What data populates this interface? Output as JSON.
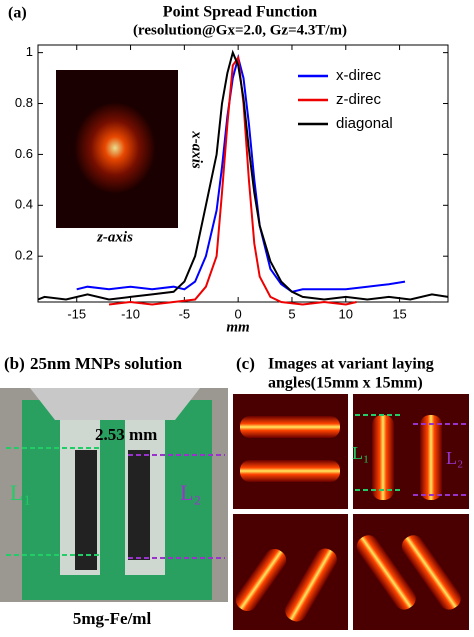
{
  "chart_data": {
    "type": "line",
    "panel_label": "(a)",
    "title": "Point Spread Function",
    "subtitle": "(resolution@Gx=2.0, Gz=4.3T/m)",
    "x_label": "mm",
    "inset_labels": [
      "x-axis",
      "z-axis"
    ],
    "xlim": [
      -18.6,
      19.5
    ],
    "xticks": [
      -15,
      -10,
      -5,
      0,
      5,
      10,
      15
    ],
    "ylim": [
      0.02,
      1.03
    ],
    "yticks": [
      0.2,
      0.4,
      0.6,
      0.8,
      1
    ],
    "legend": "upper right",
    "series": [
      {
        "name": "x-direc",
        "color": "#0000ff",
        "x": [
          -15,
          -14,
          -12,
          -10,
          -8,
          -6,
          -5,
          -4,
          -3,
          -2,
          -1.5,
          -1,
          -0.5,
          0,
          0.5,
          1,
          1.5,
          2,
          3,
          4,
          5,
          6,
          8,
          10,
          12,
          14,
          15.5
        ],
        "values": [
          0.07,
          0.08,
          0.07,
          0.08,
          0.07,
          0.08,
          0.07,
          0.1,
          0.2,
          0.38,
          0.55,
          0.75,
          0.9,
          0.98,
          0.9,
          0.72,
          0.5,
          0.32,
          0.15,
          0.09,
          0.06,
          0.07,
          0.07,
          0.07,
          0.08,
          0.09,
          0.1
        ]
      },
      {
        "name": "z-direc",
        "color": "#ee0000",
        "x": [
          -12,
          -10,
          -8,
          -6,
          -4,
          -3,
          -2,
          -1.5,
          -1,
          -0.5,
          0,
          0.5,
          1,
          1.5,
          2,
          3,
          4,
          6,
          8,
          10,
          11
        ],
        "values": [
          0.01,
          0.02,
          0.01,
          0.02,
          0.03,
          0.08,
          0.2,
          0.45,
          0.72,
          0.95,
          0.98,
          0.8,
          0.5,
          0.25,
          0.12,
          0.04,
          0.02,
          0.01,
          0.02,
          0.01,
          0.02
        ]
      },
      {
        "name": "diagonal",
        "color": "#000000",
        "x": [
          -18.6,
          -18,
          -16,
          -14,
          -12,
          -10,
          -8,
          -6,
          -5,
          -4,
          -3,
          -2,
          -1.5,
          -1,
          -0.5,
          0,
          0.5,
          1,
          1.5,
          2,
          3,
          4,
          5,
          6,
          8,
          10,
          12,
          14,
          16,
          18,
          19.5
        ],
        "values": [
          0.03,
          0.04,
          0.03,
          0.05,
          0.03,
          0.04,
          0.05,
          0.06,
          0.1,
          0.2,
          0.4,
          0.6,
          0.8,
          0.92,
          1.0,
          0.95,
          0.82,
          0.62,
          0.45,
          0.32,
          0.18,
          0.1,
          0.06,
          0.04,
          0.03,
          0.04,
          0.03,
          0.04,
          0.03,
          0.05,
          0.04
        ]
      }
    ]
  },
  "panel_b": {
    "label": "(b)",
    "title": "25nm MNPs solution",
    "distance": "2.53 mm",
    "l1": "L₁",
    "l2": "L₂",
    "caption": "5mg-Fe/ml"
  },
  "panel_c": {
    "label": "(c)",
    "title_lines": [
      "Images at variant laying",
      "angles(15mm x 15mm)"
    ],
    "l1": "L₁",
    "l2": "L₂"
  }
}
